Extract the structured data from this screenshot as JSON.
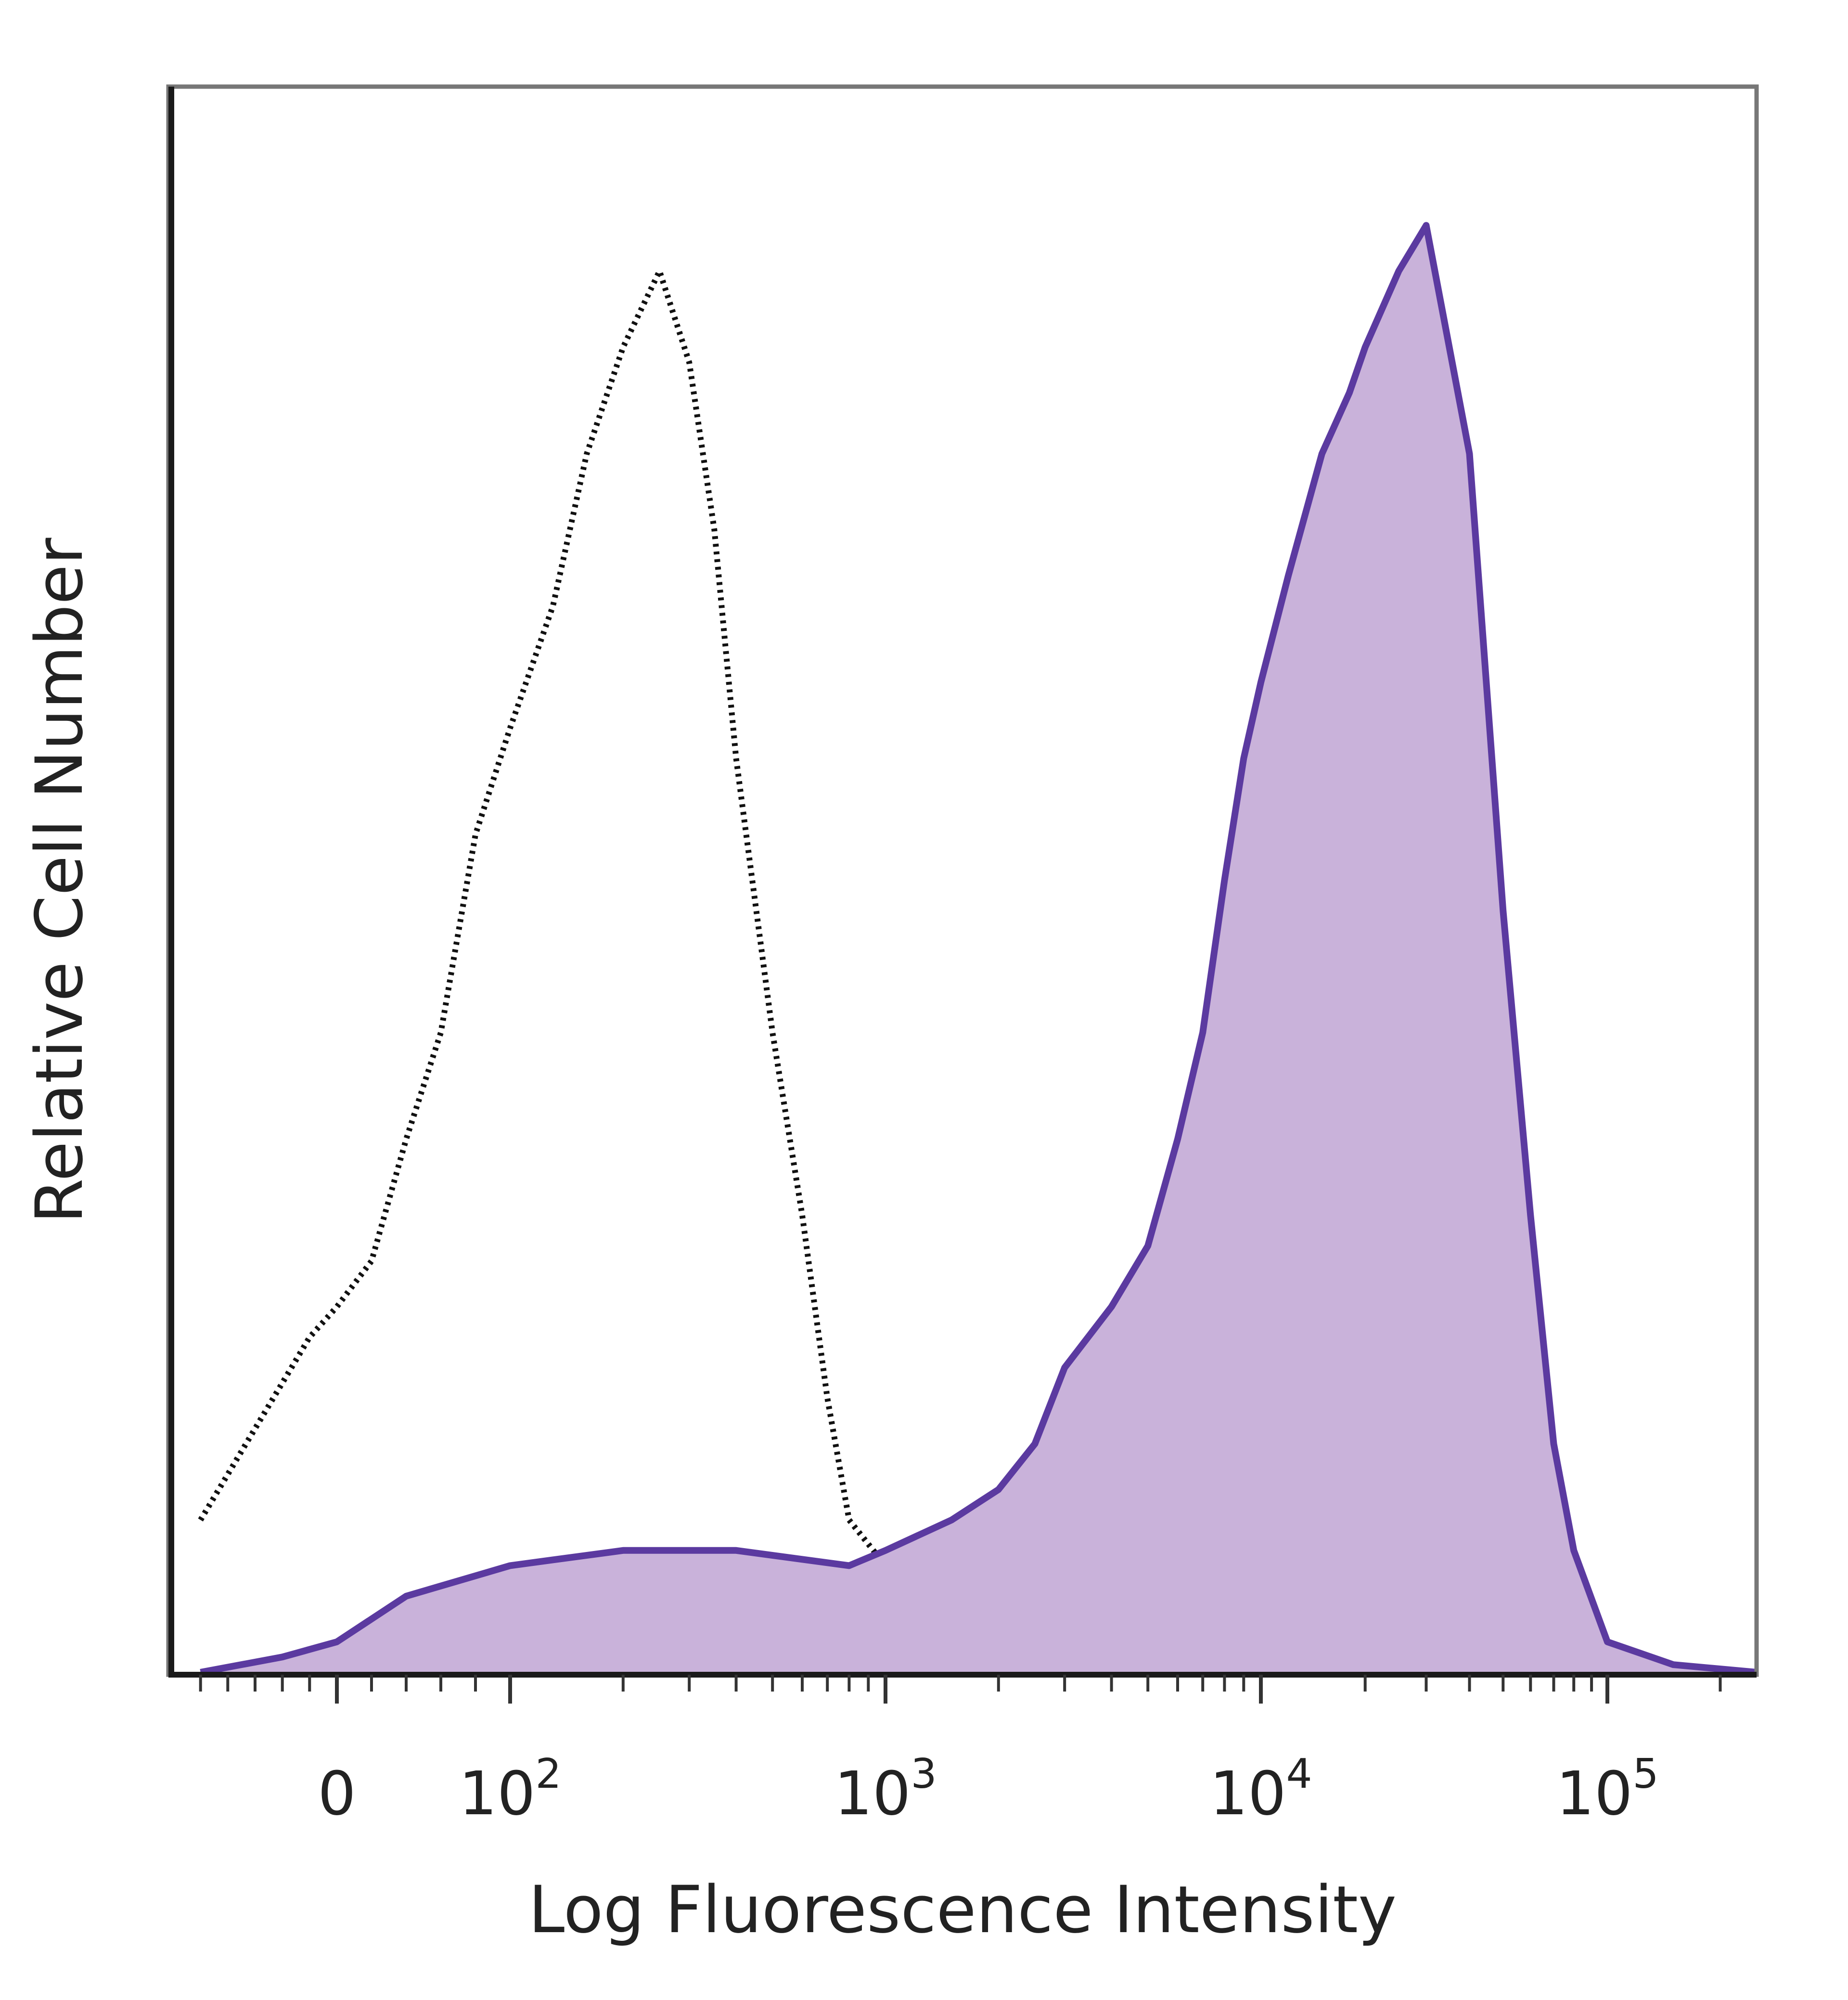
{
  "chart_data": {
    "type": "area",
    "title": "",
    "xlabel": "Log Fluorescence Intensity",
    "ylabel": "Relative Cell Number",
    "x_scale": "biexponential (logicle)",
    "xlim": [
      -120,
      250000
    ],
    "ylim": [
      0,
      1.0
    ],
    "y_tick_labels": "none",
    "grid": false,
    "legend": "none",
    "x_tick_labels": [
      {
        "value": 0,
        "base": "0",
        "exp": ""
      },
      {
        "value": 100,
        "base": "10",
        "exp": "2"
      },
      {
        "value": 1000,
        "base": "10",
        "exp": "3"
      },
      {
        "value": 10000,
        "base": "10",
        "exp": "4"
      },
      {
        "value": 100000,
        "base": "10",
        "exp": "5"
      }
    ],
    "series": [
      {
        "style": "dotted black outline",
        "color": "#111111",
        "filled": false,
        "x": [
          -100,
          -60,
          -40,
          -20,
          0,
          20,
          40,
          60,
          80,
          100,
          130,
          160,
          200,
          250,
          300,
          350,
          400,
          500,
          600,
          700,
          800,
          1000,
          1300,
          1700,
          2200,
          2800
        ],
        "y": [
          0.1,
          0.16,
          0.19,
          0.22,
          0.24,
          0.27,
          0.35,
          0.42,
          0.55,
          0.62,
          0.7,
          0.8,
          0.87,
          0.92,
          0.86,
          0.75,
          0.6,
          0.42,
          0.3,
          0.18,
          0.1,
          0.07,
          0.05,
          0.02,
          0.005,
          0.0
        ]
      },
      {
        "style": "filled purple histogram",
        "color": "#5b3aa0",
        "fill": "#c9b2da",
        "filled": true,
        "x": [
          -100,
          -40,
          0,
          40,
          100,
          200,
          400,
          800,
          1000,
          1500,
          2000,
          2500,
          3000,
          4000,
          5000,
          6000,
          7000,
          8000,
          9000,
          10000,
          12000,
          15000,
          18000,
          20000,
          25000,
          30000,
          40000,
          50000,
          60000,
          70000,
          80000,
          100000,
          150000,
          250000
        ],
        "y": [
          0.0,
          0.01,
          0.02,
          0.05,
          0.07,
          0.08,
          0.08,
          0.07,
          0.08,
          0.1,
          0.12,
          0.15,
          0.2,
          0.24,
          0.28,
          0.35,
          0.42,
          0.52,
          0.6,
          0.65,
          0.72,
          0.8,
          0.84,
          0.87,
          0.92,
          0.95,
          0.8,
          0.5,
          0.3,
          0.15,
          0.08,
          0.02,
          0.005,
          0.0
        ]
      }
    ]
  }
}
